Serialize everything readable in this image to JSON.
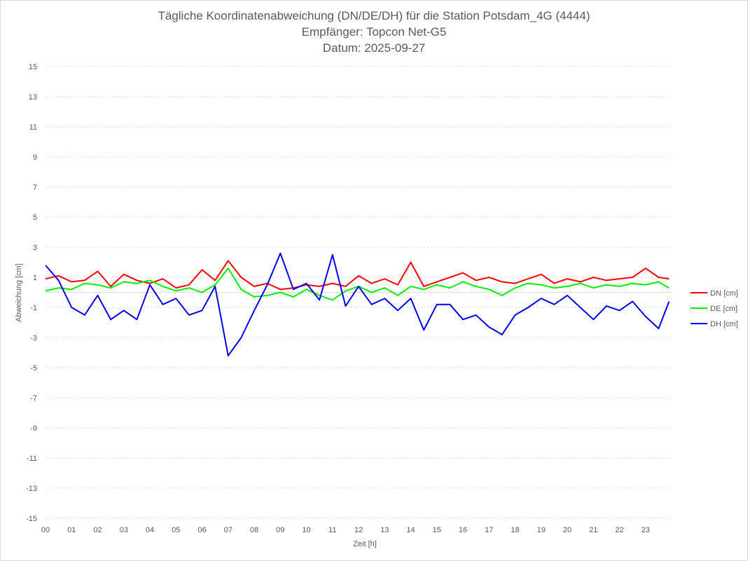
{
  "chart_data": {
    "type": "line",
    "title": [
      "Tägliche Koordinatenabweichung (DN/DE/DH) für die Station Potsdam_4G (4444)",
      "Empfänger: Topcon Net-G5",
      "Datum: 2025-09-27"
    ],
    "xlabel": "Zeit [h]",
    "ylabel": "Abweichung [cm]",
    "xlim": [
      0,
      24
    ],
    "ylim": [
      -15,
      15
    ],
    "grid": true,
    "legend_position": "right",
    "x_ticks": [
      "00",
      "01",
      "02",
      "03",
      "04",
      "05",
      "06",
      "07",
      "08",
      "09",
      "10",
      "11",
      "12",
      "13",
      "14",
      "15",
      "16",
      "17",
      "18",
      "19",
      "20",
      "21",
      "22",
      "23"
    ],
    "y_ticks": [
      15,
      13,
      11,
      9,
      7,
      5,
      3,
      1,
      -1,
      -3,
      -5,
      -7,
      -9,
      -11,
      -13,
      -15
    ],
    "x": [
      0,
      0.5,
      1,
      1.5,
      2,
      2.5,
      3,
      3.5,
      4,
      4.5,
      5,
      5.5,
      6,
      6.5,
      7,
      7.5,
      8,
      8.5,
      9,
      9.5,
      10,
      10.5,
      11,
      11.5,
      12,
      12.5,
      13,
      13.5,
      14,
      14.5,
      15,
      15.5,
      16,
      16.5,
      17,
      17.5,
      18,
      18.5,
      19,
      19.5,
      20,
      20.5,
      21,
      21.5,
      22,
      22.5,
      23,
      23.5,
      23.9
    ],
    "series": [
      {
        "name": "DN [cm]",
        "color": "#ff0000",
        "values": [
          0.9,
          1.1,
          0.7,
          0.8,
          1.4,
          0.4,
          1.2,
          0.8,
          0.6,
          0.9,
          0.3,
          0.5,
          1.5,
          0.8,
          2.1,
          1.0,
          0.4,
          0.6,
          0.2,
          0.3,
          0.5,
          0.4,
          0.6,
          0.4,
          1.1,
          0.6,
          0.9,
          0.5,
          2.0,
          0.4,
          0.7,
          1.0,
          1.3,
          0.8,
          1.0,
          0.7,
          0.6,
          0.9,
          1.2,
          0.6,
          0.9,
          0.7,
          1.0,
          0.8,
          0.9,
          1.0,
          1.6,
          1.0,
          0.9
        ]
      },
      {
        "name": "DE [cm]",
        "color": "#00ee00",
        "values": [
          0.1,
          0.3,
          0.2,
          0.6,
          0.5,
          0.3,
          0.7,
          0.6,
          0.8,
          0.4,
          0.1,
          0.3,
          0.0,
          0.5,
          1.6,
          0.2,
          -0.3,
          -0.2,
          0.0,
          -0.3,
          0.2,
          -0.2,
          -0.5,
          0.1,
          0.4,
          0.0,
          0.3,
          -0.2,
          0.4,
          0.2,
          0.5,
          0.3,
          0.7,
          0.4,
          0.2,
          -0.2,
          0.3,
          0.6,
          0.5,
          0.3,
          0.4,
          0.6,
          0.3,
          0.5,
          0.4,
          0.6,
          0.5,
          0.7,
          0.3
        ]
      },
      {
        "name": "DH [cm]",
        "color": "#0000ee",
        "values": [
          1.8,
          0.8,
          -1.0,
          -1.5,
          -0.2,
          -1.8,
          -1.2,
          -1.8,
          0.5,
          -0.8,
          -0.4,
          -1.5,
          -1.2,
          0.4,
          -4.2,
          -3.0,
          -1.2,
          0.5,
          2.6,
          0.2,
          0.6,
          -0.5,
          2.5,
          -0.9,
          0.4,
          -0.8,
          -0.4,
          -1.2,
          -0.4,
          -2.5,
          -0.8,
          -0.8,
          -1.8,
          -1.5,
          -2.3,
          -2.8,
          -1.5,
          -1.0,
          -0.4,
          -0.8,
          -0.2,
          -1.0,
          -1.8,
          -0.9,
          -1.2,
          -0.6,
          -1.6,
          -2.4,
          -0.6
        ]
      }
    ]
  }
}
